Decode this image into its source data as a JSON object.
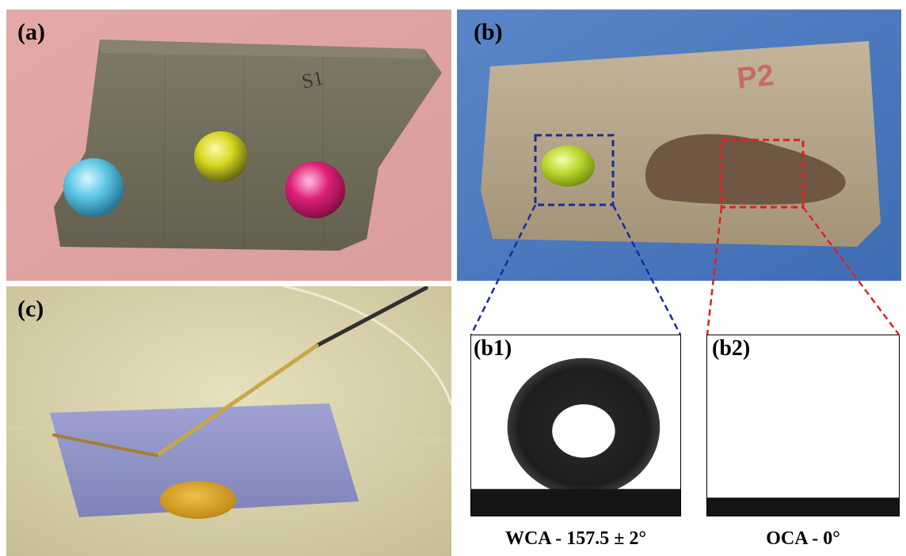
{
  "panels": {
    "a": {
      "label": "(a)",
      "fabric_mark": "S1"
    },
    "b": {
      "label": "(b)",
      "fabric_mark": "P2"
    },
    "c": {
      "label": "(c)"
    },
    "b1": {
      "label": "(b1)",
      "caption": "WCA - 157.5 ± 2°"
    },
    "b2": {
      "label": "(b2)",
      "caption": "OCA - 0°"
    }
  },
  "colors": {
    "zoom_blue": "#1a2b9c",
    "zoom_red": "#e02020",
    "droplet_cyan": "#5ec8e6",
    "droplet_yellow": "#d8d820",
    "droplet_magenta": "#e0207a"
  }
}
